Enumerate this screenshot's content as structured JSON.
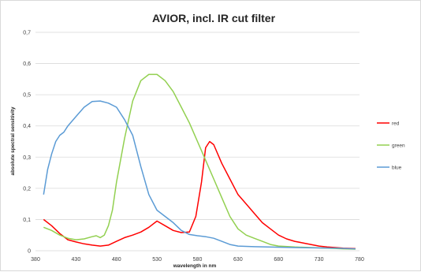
{
  "chart_data": {
    "type": "line",
    "title": "AVIOR, incl. IR cut filter",
    "xlabel": "wavelength in nm",
    "ylabel": "absolute spectral sensitivity",
    "xlim": [
      380,
      780
    ],
    "ylim": [
      0,
      0.7
    ],
    "xticks": [
      "380",
      "430",
      "480",
      "530",
      "580",
      "630",
      "680",
      "730",
      "780"
    ],
    "yticks": [
      "0",
      "0,1",
      "0,2",
      "0,3",
      "0,4",
      "0,5",
      "0,6",
      "0,7"
    ],
    "grid": true,
    "legend_position": "right",
    "series": [
      {
        "name": "red",
        "color": "#ff0000",
        "points": [
          [
            390,
            0.1
          ],
          [
            400,
            0.08
          ],
          [
            410,
            0.055
          ],
          [
            420,
            0.035
          ],
          [
            430,
            0.028
          ],
          [
            440,
            0.022
          ],
          [
            450,
            0.018
          ],
          [
            460,
            0.015
          ],
          [
            470,
            0.018
          ],
          [
            480,
            0.03
          ],
          [
            490,
            0.042
          ],
          [
            500,
            0.05
          ],
          [
            510,
            0.06
          ],
          [
            520,
            0.075
          ],
          [
            530,
            0.095
          ],
          [
            540,
            0.08
          ],
          [
            550,
            0.065
          ],
          [
            560,
            0.058
          ],
          [
            570,
            0.06
          ],
          [
            578,
            0.11
          ],
          [
            585,
            0.22
          ],
          [
            590,
            0.33
          ],
          [
            595,
            0.35
          ],
          [
            600,
            0.34
          ],
          [
            610,
            0.28
          ],
          [
            620,
            0.23
          ],
          [
            630,
            0.18
          ],
          [
            640,
            0.15
          ],
          [
            650,
            0.12
          ],
          [
            660,
            0.09
          ],
          [
            670,
            0.07
          ],
          [
            680,
            0.05
          ],
          [
            690,
            0.038
          ],
          [
            700,
            0.03
          ],
          [
            710,
            0.025
          ],
          [
            720,
            0.02
          ],
          [
            730,
            0.015
          ],
          [
            740,
            0.012
          ],
          [
            750,
            0.01
          ],
          [
            760,
            0.008
          ],
          [
            775,
            0.007
          ]
        ]
      },
      {
        "name": "green",
        "color": "#92d050",
        "points": [
          [
            390,
            0.075
          ],
          [
            400,
            0.065
          ],
          [
            410,
            0.05
          ],
          [
            420,
            0.04
          ],
          [
            430,
            0.035
          ],
          [
            440,
            0.038
          ],
          [
            450,
            0.045
          ],
          [
            455,
            0.048
          ],
          [
            460,
            0.042
          ],
          [
            465,
            0.05
          ],
          [
            470,
            0.08
          ],
          [
            475,
            0.13
          ],
          [
            480,
            0.22
          ],
          [
            490,
            0.36
          ],
          [
            500,
            0.48
          ],
          [
            510,
            0.545
          ],
          [
            520,
            0.565
          ],
          [
            530,
            0.565
          ],
          [
            540,
            0.545
          ],
          [
            550,
            0.51
          ],
          [
            560,
            0.46
          ],
          [
            570,
            0.41
          ],
          [
            580,
            0.35
          ],
          [
            590,
            0.29
          ],
          [
            600,
            0.23
          ],
          [
            610,
            0.17
          ],
          [
            620,
            0.11
          ],
          [
            630,
            0.07
          ],
          [
            640,
            0.05
          ],
          [
            650,
            0.04
          ],
          [
            660,
            0.03
          ],
          [
            670,
            0.02
          ],
          [
            680,
            0.015
          ],
          [
            700,
            0.012
          ],
          [
            720,
            0.01
          ],
          [
            740,
            0.008
          ],
          [
            760,
            0.006
          ],
          [
            775,
            0.005
          ]
        ]
      },
      {
        "name": "blue",
        "color": "#5b9bd5",
        "points": [
          [
            390,
            0.18
          ],
          [
            395,
            0.26
          ],
          [
            400,
            0.31
          ],
          [
            405,
            0.35
          ],
          [
            410,
            0.37
          ],
          [
            415,
            0.38
          ],
          [
            420,
            0.4
          ],
          [
            430,
            0.43
          ],
          [
            440,
            0.46
          ],
          [
            450,
            0.478
          ],
          [
            460,
            0.48
          ],
          [
            470,
            0.473
          ],
          [
            480,
            0.46
          ],
          [
            490,
            0.42
          ],
          [
            500,
            0.37
          ],
          [
            510,
            0.27
          ],
          [
            520,
            0.18
          ],
          [
            530,
            0.13
          ],
          [
            540,
            0.11
          ],
          [
            550,
            0.09
          ],
          [
            560,
            0.065
          ],
          [
            570,
            0.052
          ],
          [
            580,
            0.048
          ],
          [
            590,
            0.045
          ],
          [
            600,
            0.04
          ],
          [
            610,
            0.03
          ],
          [
            620,
            0.02
          ],
          [
            630,
            0.015
          ],
          [
            650,
            0.013
          ],
          [
            700,
            0.01
          ],
          [
            750,
            0.008
          ],
          [
            775,
            0.006
          ]
        ]
      }
    ]
  }
}
